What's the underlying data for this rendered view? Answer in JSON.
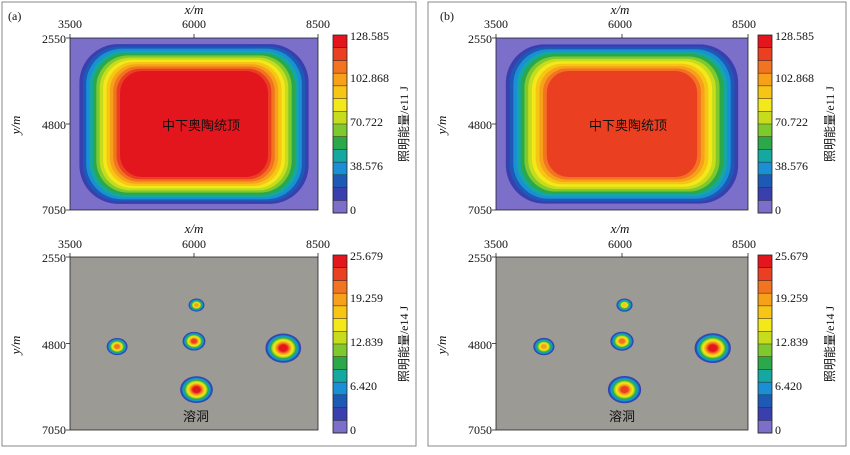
{
  "panels": [
    {
      "label": "(a)",
      "charts": [
        {
          "type": "heatmap",
          "xlabel": "x/m",
          "ylabel": "y/m",
          "xlim": [
            3500,
            8500
          ],
          "ylim": [
            2550,
            7050
          ],
          "xticks": [
            "3500",
            "6000",
            "8500"
          ],
          "yticks": [
            "2550",
            "4800",
            "7050"
          ],
          "colorbar": {
            "label": "照明能量/e11 J",
            "ticks": [
              "128.585",
              "102.868",
              "70.722",
              "38.576",
              "0"
            ],
            "range": [
              0,
              128.585
            ]
          },
          "annotation": "中下奥陶统顶",
          "field": {
            "kind": "plateau",
            "peak": 128.585
          }
        },
        {
          "type": "heatmap",
          "xlabel": "x/m",
          "ylabel": "y/m",
          "xlim": [
            3500,
            8500
          ],
          "ylim": [
            2550,
            7050
          ],
          "xticks": [
            "3500",
            "6000",
            "8500"
          ],
          "yticks": [
            "2550",
            "4800",
            "7050"
          ],
          "colorbar": {
            "label": "照明能量/e14 J",
            "ticks": [
              "25.679",
              "19.259",
              "12.839",
              "6.420",
              "0"
            ],
            "range": [
              0,
              25.679
            ]
          },
          "annotation": "溶洞",
          "field": {
            "kind": "blobs",
            "blobs": [
              {
                "x": 6050,
                "y": 3800,
                "r": 160,
                "peak": 19
              },
              {
                "x": 4450,
                "y": 4880,
                "r": 210,
                "peak": 21
              },
              {
                "x": 6000,
                "y": 4740,
                "r": 230,
                "peak": 23
              },
              {
                "x": 7800,
                "y": 4920,
                "r": 360,
                "peak": 25
              },
              {
                "x": 6050,
                "y": 6000,
                "r": 330,
                "peak": 24
              }
            ]
          }
        }
      ]
    },
    {
      "label": "(b)",
      "charts": [
        {
          "type": "heatmap",
          "xlabel": "x/m",
          "ylabel": "y/m",
          "xlim": [
            3500,
            8500
          ],
          "ylim": [
            2550,
            7050
          ],
          "xticks": [
            "3500",
            "6000",
            "8500"
          ],
          "yticks": [
            "2550",
            "4800",
            "7050"
          ],
          "colorbar": {
            "label": "照明能量/e11 J",
            "ticks": [
              "128.585",
              "102.868",
              "70.722",
              "38.576",
              "0"
            ],
            "range": [
              0,
              128.585
            ]
          },
          "annotation": "中下奥陶统顶",
          "field": {
            "kind": "plateau",
            "peak": 113
          }
        },
        {
          "type": "heatmap",
          "xlabel": "x/m",
          "ylabel": "y/m",
          "xlim": [
            3500,
            8500
          ],
          "ylim": [
            2550,
            7050
          ],
          "xticks": [
            "3500",
            "6000",
            "8500"
          ],
          "yticks": [
            "2550",
            "4800",
            "7050"
          ],
          "colorbar": {
            "label": "照明能量/e14 J",
            "ticks": [
              "25.679",
              "19.259",
              "12.839",
              "6.420",
              "0"
            ],
            "range": [
              0,
              25.679
            ]
          },
          "annotation": "溶洞",
          "field": {
            "kind": "blobs",
            "blobs": [
              {
                "x": 6050,
                "y": 3800,
                "r": 160,
                "peak": 18
              },
              {
                "x": 4450,
                "y": 4880,
                "r": 210,
                "peak": 20
              },
              {
                "x": 6000,
                "y": 4740,
                "r": 230,
                "peak": 22
              },
              {
                "x": 7800,
                "y": 4920,
                "r": 360,
                "peak": 24
              },
              {
                "x": 6050,
                "y": 6000,
                "r": 330,
                "peak": 23
              }
            ]
          }
        }
      ]
    }
  ],
  "colors": {
    "scale": [
      "#7b6fc9",
      "#3a3fb0",
      "#1d5ab6",
      "#1a8fd6",
      "#14a8a0",
      "#2aa84a",
      "#7ec92e",
      "#c8dc1e",
      "#f2e81a",
      "#f7c615",
      "#f7a11a",
      "#f27320",
      "#ea3f21",
      "#e4161d"
    ],
    "background_top": "#7b6fc9",
    "background_bottom": "#9b9a94"
  }
}
